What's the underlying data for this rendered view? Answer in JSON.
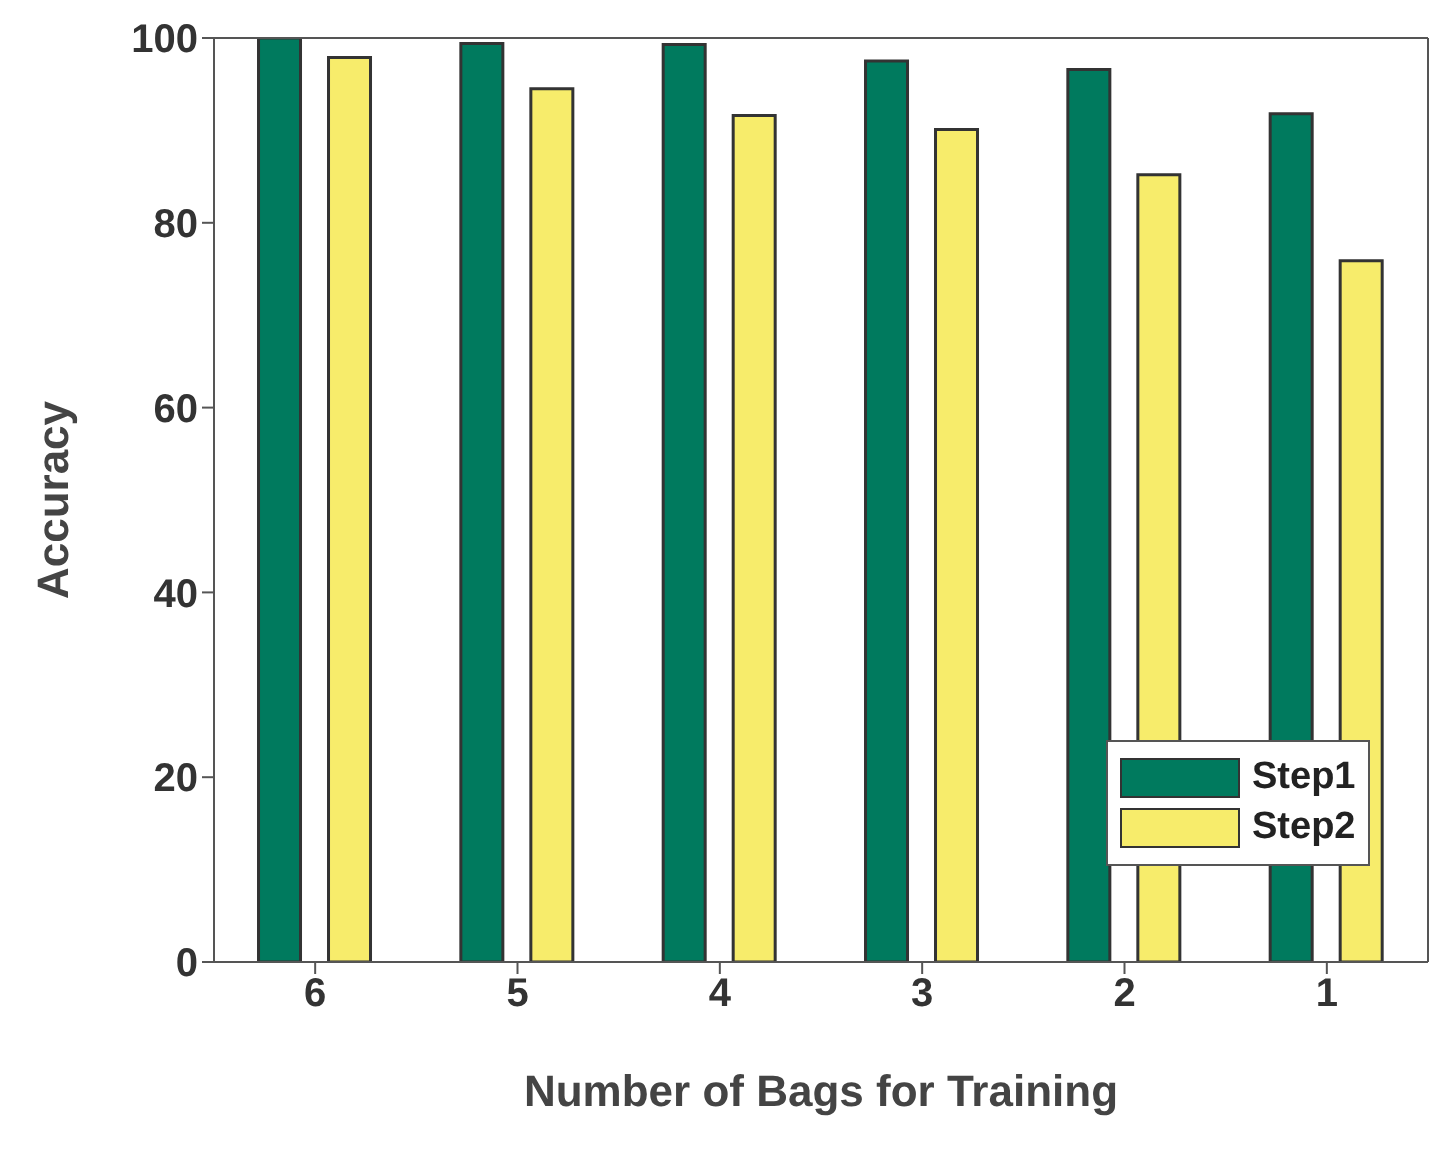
{
  "chart_data": {
    "type": "bar",
    "xlabel": "Number of Bags for Training",
    "ylabel": "Accuracy",
    "categories": [
      "6",
      "5",
      "4",
      "3",
      "2",
      "1"
    ],
    "series": [
      {
        "name": "Step1",
        "color": "#007a5e",
        "values": [
          100,
          99.4,
          99.3,
          97.5,
          96.6,
          91.8
        ]
      },
      {
        "name": "Step2",
        "color": "#f7ec6b",
        "values": [
          97.9,
          94.5,
          91.6,
          90.1,
          85.2,
          75.9
        ]
      }
    ],
    "ylim": [
      0,
      100
    ],
    "yticks": [
      0,
      20,
      40,
      60,
      80,
      100
    ],
    "legend": "bottom right"
  }
}
